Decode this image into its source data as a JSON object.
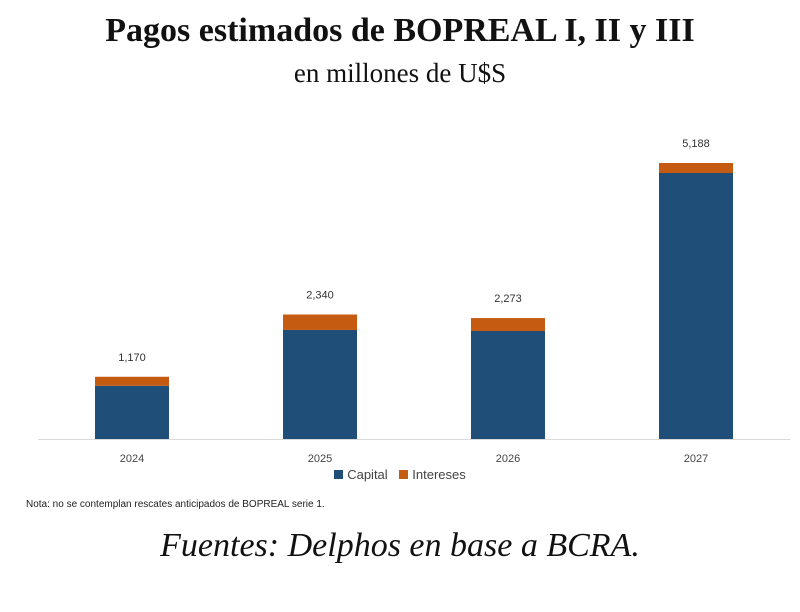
{
  "title": "Pagos estimados de BOPREAL I, II y III",
  "subtitle": "en millones de U$S",
  "note": "Nota: no se contemplan rescates anticipados de BOPREAL serie 1.",
  "source": "Fuentes: Delphos en base a BCRA.",
  "colors": {
    "capital": "#1f4e79",
    "intereses": "#c55a11",
    "axis": "#d9d9d9"
  },
  "chart_data": {
    "type": "bar",
    "stacked": true,
    "categories": [
      "2024",
      "2025",
      "2026",
      "2027"
    ],
    "series": [
      {
        "name": "Capital",
        "values": [
          1000,
          2050,
          2030,
          5000
        ]
      },
      {
        "name": "Intereses",
        "values": [
          170,
          290,
          243,
          188
        ]
      }
    ],
    "totals": [
      1170,
      2340,
      2273,
      5188
    ],
    "total_labels": [
      "1,170",
      "2,340",
      "2,273",
      "5,188"
    ],
    "ylim": [
      0,
      5188
    ],
    "legend": "bottom",
    "grid": false
  }
}
